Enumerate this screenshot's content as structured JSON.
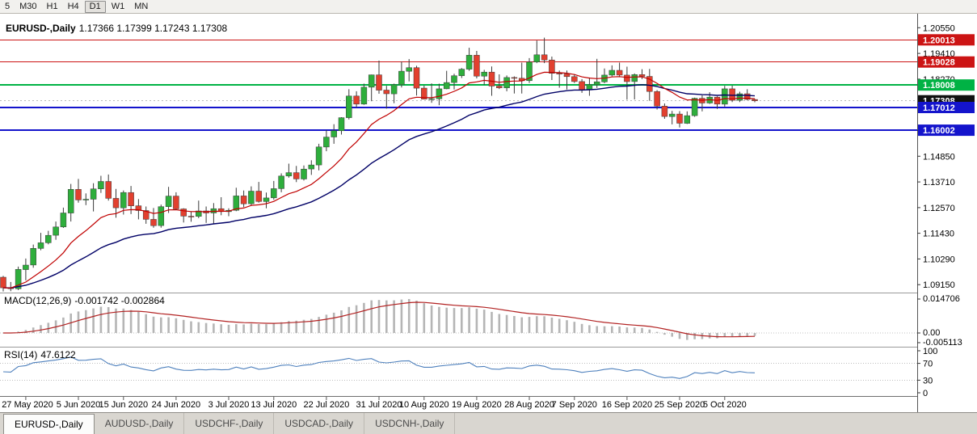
{
  "toolbar": {
    "timeframes": [
      "5",
      "M30",
      "H1",
      "H4",
      "D1",
      "W1",
      "MN"
    ],
    "active": "D1"
  },
  "chart": {
    "title": "EURUSD-,Daily",
    "ohlc_line": "1.17366 1.17399 1.17243 1.17308"
  },
  "macd_panel": {
    "label": "MACD(12,26,9)",
    "values": "-0.001742 -0.002864",
    "axis_labels": [
      "0.014706",
      "0.00",
      "-0.005113"
    ]
  },
  "rsi_panel": {
    "label": "RSI(14)",
    "value": "47.6122",
    "axis_labels": [
      "100",
      "70",
      "30",
      "0"
    ],
    "levels": [
      70,
      30
    ]
  },
  "price_axis": {
    "ticks": [
      "1.20550",
      "1.19410",
      "1.18270",
      "1.17130",
      "1.15990",
      "1.14850",
      "1.13710",
      "1.12570",
      "1.11430",
      "1.10290",
      "1.09150"
    ],
    "badges": [
      {
        "label": "1.20013",
        "color": "#CC1414"
      },
      {
        "label": "1.19028",
        "color": "#CC1414"
      },
      {
        "label": "1.18008",
        "color": "#00B244"
      },
      {
        "label": "1.17308",
        "color": "#101010"
      },
      {
        "label": "1.17012",
        "color": "#1414CC"
      },
      {
        "label": "1.16002",
        "color": "#1414CC"
      }
    ]
  },
  "chart_data": {
    "type": "candlestick",
    "symbol": "EURUSD-",
    "timeframe": "Daily",
    "title": "EURUSD-,Daily",
    "current_ohlc": {
      "open": 1.17366,
      "high": 1.17399,
      "low": 1.17243,
      "close": 1.17308
    },
    "y_range_hint": {
      "top": 1.2117,
      "bottom": 1.088
    },
    "x_labels": [
      {
        "i": 3,
        "t": "27 May 2020"
      },
      {
        "i": 10,
        "t": "5 Jun 2020"
      },
      {
        "i": 16,
        "t": "15 Jun 2020"
      },
      {
        "i": 23,
        "t": "24 Jun 2020"
      },
      {
        "i": 30,
        "t": "3 Jul 2020"
      },
      {
        "i": 36,
        "t": "13 Jul 2020"
      },
      {
        "i": 43,
        "t": "22 Jul 2020"
      },
      {
        "i": 50,
        "t": "31 Jul 2020"
      },
      {
        "i": 56,
        "t": "10 Aug 2020"
      },
      {
        "i": 63,
        "t": "19 Aug 2020"
      },
      {
        "i": 70,
        "t": "28 Aug 2020"
      },
      {
        "i": 76,
        "t": "7 Sep 2020"
      },
      {
        "i": 83,
        "t": "16 Sep 2020"
      },
      {
        "i": 90,
        "t": "25 Sep 2020"
      },
      {
        "i": 96,
        "t": "5 Oct 2020"
      }
    ],
    "horizontal_lines": [
      {
        "price": 1.20013,
        "color": "#CC1414",
        "w": 1
      },
      {
        "price": 1.19028,
        "color": "#CC1414",
        "w": 1
      },
      {
        "price": 1.18008,
        "color": "#00B244",
        "w": 2
      },
      {
        "price": 1.17012,
        "color": "#1414CC",
        "w": 2
      },
      {
        "price": 1.16002,
        "color": "#1414CC",
        "w": 2
      }
    ],
    "current_price": 1.17308,
    "candles": [
      [
        1.0948,
        1.0954,
        1.0885,
        1.0901
      ],
      [
        1.0901,
        1.0927,
        1.0886,
        1.0897
      ],
      [
        1.0897,
        1.0995,
        1.0891,
        1.0983
      ],
      [
        1.0982,
        1.1031,
        1.0934,
        1.1002
      ],
      [
        1.1002,
        1.1093,
        1.099,
        1.1076
      ],
      [
        1.1076,
        1.1145,
        1.1068,
        1.1101
      ],
      [
        1.1101,
        1.1154,
        1.1094,
        1.1134
      ],
      [
        1.1134,
        1.1195,
        1.1114,
        1.1171
      ],
      [
        1.1171,
        1.1257,
        1.1167,
        1.1233
      ],
      [
        1.1233,
        1.1362,
        1.1195,
        1.1338
      ],
      [
        1.1338,
        1.1384,
        1.1279,
        1.1291
      ],
      [
        1.1291,
        1.132,
        1.1268,
        1.1294
      ],
      [
        1.1294,
        1.1365,
        1.124,
        1.134
      ],
      [
        1.134,
        1.1398,
        1.1322,
        1.1373
      ],
      [
        1.1373,
        1.1404,
        1.1288,
        1.1298
      ],
      [
        1.1298,
        1.134,
        1.1212,
        1.1256
      ],
      [
        1.1256,
        1.1333,
        1.1226,
        1.1324
      ],
      [
        1.1324,
        1.1353,
        1.1228,
        1.1265
      ],
      [
        1.1265,
        1.1295,
        1.1205,
        1.1244
      ],
      [
        1.1244,
        1.1262,
        1.1185,
        1.1205
      ],
      [
        1.1205,
        1.1255,
        1.1168,
        1.1177
      ],
      [
        1.1177,
        1.127,
        1.1168,
        1.1261
      ],
      [
        1.1261,
        1.1349,
        1.1233,
        1.1308
      ],
      [
        1.1308,
        1.1325,
        1.1247,
        1.1251
      ],
      [
        1.1251,
        1.1254,
        1.1191,
        1.1219
      ],
      [
        1.1219,
        1.1239,
        1.1194,
        1.1218
      ],
      [
        1.1218,
        1.1288,
        1.121,
        1.1242
      ],
      [
        1.1242,
        1.1262,
        1.1189,
        1.1233
      ],
      [
        1.1233,
        1.1277,
        1.1184,
        1.1252
      ],
      [
        1.1252,
        1.1303,
        1.1223,
        1.1239
      ],
      [
        1.1239,
        1.1254,
        1.1219,
        1.1245
      ],
      [
        1.1245,
        1.1345,
        1.1241,
        1.1309
      ],
      [
        1.1309,
        1.1333,
        1.1259,
        1.1274
      ],
      [
        1.1274,
        1.1351,
        1.1265,
        1.133
      ],
      [
        1.133,
        1.1371,
        1.1279,
        1.1284
      ],
      [
        1.1284,
        1.1324,
        1.1254,
        1.13
      ],
      [
        1.13,
        1.1375,
        1.1292,
        1.1341
      ],
      [
        1.1341,
        1.1409,
        1.1325,
        1.1397
      ],
      [
        1.1397,
        1.1452,
        1.139,
        1.1412
      ],
      [
        1.1412,
        1.1442,
        1.137,
        1.1384
      ],
      [
        1.1384,
        1.1444,
        1.1377,
        1.1428
      ],
      [
        1.1428,
        1.1467,
        1.1402,
        1.1446
      ],
      [
        1.1446,
        1.154,
        1.1422,
        1.1526
      ],
      [
        1.1526,
        1.1601,
        1.1507,
        1.157
      ],
      [
        1.157,
        1.1627,
        1.154,
        1.1598
      ],
      [
        1.1598,
        1.1658,
        1.1581,
        1.1656
      ],
      [
        1.1656,
        1.1782,
        1.1648,
        1.1752
      ],
      [
        1.1752,
        1.1773,
        1.17,
        1.1716
      ],
      [
        1.1716,
        1.1807,
        1.1713,
        1.1791
      ],
      [
        1.1791,
        1.1847,
        1.1729,
        1.1846
      ],
      [
        1.1846,
        1.1909,
        1.1762,
        1.1778
      ],
      [
        1.1778,
        1.1797,
        1.1696,
        1.1762
      ],
      [
        1.1762,
        1.1807,
        1.172,
        1.1802
      ],
      [
        1.1802,
        1.1905,
        1.179,
        1.1862
      ],
      [
        1.1862,
        1.1916,
        1.1817,
        1.1878
      ],
      [
        1.1878,
        1.1886,
        1.1754,
        1.1787
      ],
      [
        1.1787,
        1.1798,
        1.1737,
        1.1738
      ],
      [
        1.1738,
        1.1808,
        1.1722,
        1.174
      ],
      [
        1.174,
        1.1807,
        1.1711,
        1.1784
      ],
      [
        1.1784,
        1.1864,
        1.1782,
        1.1812
      ],
      [
        1.1812,
        1.1851,
        1.1781,
        1.1842
      ],
      [
        1.1842,
        1.1876,
        1.1832,
        1.1871
      ],
      [
        1.1871,
        1.1966,
        1.1864,
        1.1933
      ],
      [
        1.1933,
        1.1952,
        1.183,
        1.184
      ],
      [
        1.184,
        1.1868,
        1.1801,
        1.1858
      ],
      [
        1.1858,
        1.1883,
        1.1753,
        1.1796
      ],
      [
        1.1796,
        1.1848,
        1.1783,
        1.1788
      ],
      [
        1.1788,
        1.1843,
        1.1773,
        1.1834
      ],
      [
        1.1834,
        1.1839,
        1.1763,
        1.1831
      ],
      [
        1.1831,
        1.19,
        1.1763,
        1.182
      ],
      [
        1.182,
        1.192,
        1.181,
        1.1903
      ],
      [
        1.1903,
        1.1998,
        1.1898,
        1.1935
      ],
      [
        1.1935,
        1.2011,
        1.1898,
        1.1912
      ],
      [
        1.1912,
        1.1927,
        1.1823,
        1.1853
      ],
      [
        1.1853,
        1.1865,
        1.1789,
        1.185
      ],
      [
        1.185,
        1.1865,
        1.1781,
        1.1838
      ],
      [
        1.1838,
        1.1849,
        1.181,
        1.1816
      ],
      [
        1.1816,
        1.1827,
        1.1766,
        1.1779
      ],
      [
        1.1779,
        1.1834,
        1.1753,
        1.1802
      ],
      [
        1.1802,
        1.1917,
        1.1788,
        1.1815
      ],
      [
        1.1815,
        1.1874,
        1.1809,
        1.1845
      ],
      [
        1.1845,
        1.1888,
        1.1839,
        1.1866
      ],
      [
        1.1866,
        1.19,
        1.1835,
        1.1845
      ],
      [
        1.1845,
        1.1882,
        1.1736,
        1.1816
      ],
      [
        1.1816,
        1.1852,
        1.1737,
        1.1847
      ],
      [
        1.1847,
        1.1871,
        1.1827,
        1.1839
      ],
      [
        1.1839,
        1.1872,
        1.1731,
        1.1772
      ],
      [
        1.1772,
        1.1778,
        1.1692,
        1.1707
      ],
      [
        1.1707,
        1.1719,
        1.1651,
        1.1661
      ],
      [
        1.1661,
        1.1686,
        1.1626,
        1.1672
      ],
      [
        1.1672,
        1.1685,
        1.1612,
        1.1631
      ],
      [
        1.1631,
        1.1684,
        1.1628,
        1.1665
      ],
      [
        1.1665,
        1.1745,
        1.166,
        1.1742
      ],
      [
        1.1742,
        1.1755,
        1.1684,
        1.1721
      ],
      [
        1.1721,
        1.1769,
        1.1717,
        1.1747
      ],
      [
        1.1747,
        1.1751,
        1.1695,
        1.1716
      ],
      [
        1.1716,
        1.1797,
        1.1705,
        1.1784
      ],
      [
        1.1784,
        1.1798,
        1.1725,
        1.1733
      ],
      [
        1.1733,
        1.1771,
        1.1725,
        1.1762
      ],
      [
        1.1762,
        1.1782,
        1.1733,
        1.1737
      ],
      [
        1.17366,
        1.17399,
        1.17243,
        1.17308
      ]
    ]
  },
  "tabs": [
    {
      "label": "EURUSD-,Daily",
      "active": true
    },
    {
      "label": "AUDUSD-,Daily",
      "active": false
    },
    {
      "label": "USDCHF-,Daily",
      "active": false
    },
    {
      "label": "USDCAD-,Daily",
      "active": false
    },
    {
      "label": "USDCNH-,Daily",
      "active": false
    }
  ],
  "colors": {
    "bull": "#2EAE3C",
    "bear": "#E2402F",
    "wick": "#3A3A3A",
    "ma_fast": "#C00000",
    "ma_slow": "#000066",
    "macd_hist": "#B5B5B5",
    "macd_signal": "#B22222",
    "rsi_line": "#4F81BD"
  }
}
